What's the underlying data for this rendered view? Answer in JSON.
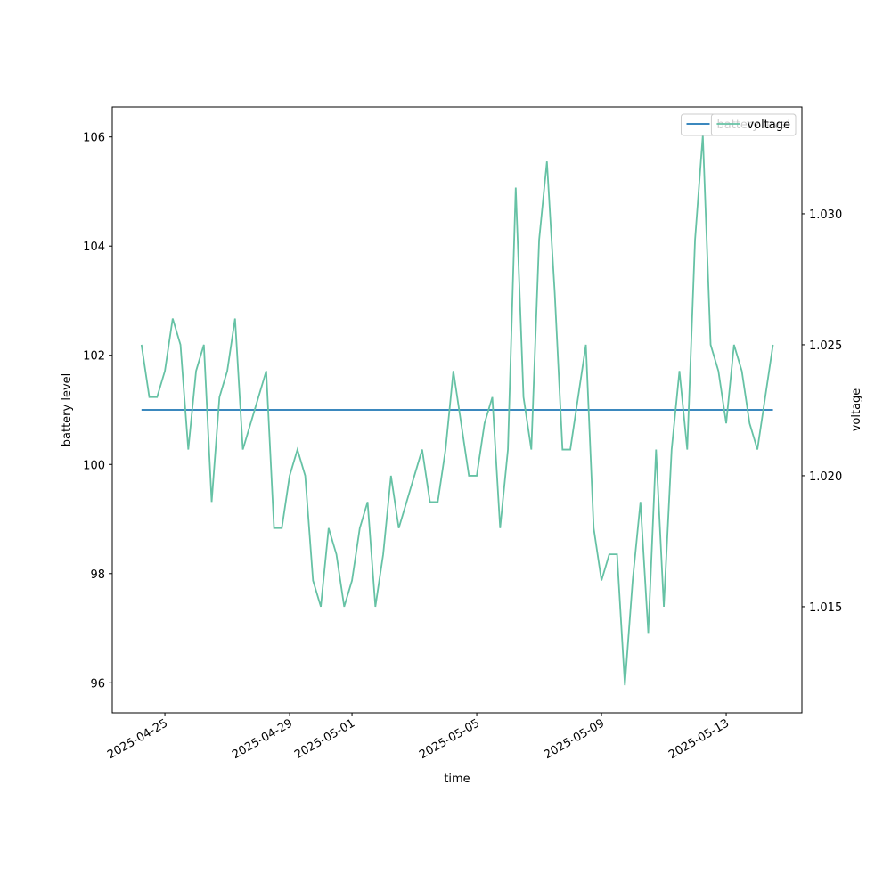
{
  "chart_data": {
    "type": "line",
    "xlabel": "time",
    "ylabel": "battery level",
    "y2label": "voltage",
    "x": [
      "2025-04-24T06:00",
      "2025-04-24T12:00",
      "2025-04-24T18:00",
      "2025-04-25T00:00",
      "2025-04-25T06:00",
      "2025-04-25T12:00",
      "2025-04-25T18:00",
      "2025-04-26T00:00",
      "2025-04-26T06:00",
      "2025-04-26T12:00",
      "2025-04-26T18:00",
      "2025-04-27T00:00",
      "2025-04-27T06:00",
      "2025-04-27T12:00",
      "2025-04-27T18:00",
      "2025-04-28T00:00",
      "2025-04-28T06:00",
      "2025-04-28T12:00",
      "2025-04-28T18:00",
      "2025-04-29T00:00",
      "2025-04-29T06:00",
      "2025-04-29T12:00",
      "2025-04-29T18:00",
      "2025-04-30T00:00",
      "2025-04-30T06:00",
      "2025-04-30T12:00",
      "2025-04-30T18:00",
      "2025-05-01T00:00",
      "2025-05-01T06:00",
      "2025-05-01T12:00",
      "2025-05-01T18:00",
      "2025-05-02T00:00",
      "2025-05-02T06:00",
      "2025-05-02T12:00",
      "2025-05-02T18:00",
      "2025-05-03T00:00",
      "2025-05-03T06:00",
      "2025-05-03T12:00",
      "2025-05-03T18:00",
      "2025-05-04T00:00",
      "2025-05-04T06:00",
      "2025-05-04T12:00",
      "2025-05-04T18:00",
      "2025-05-05T00:00",
      "2025-05-05T06:00",
      "2025-05-05T12:00",
      "2025-05-05T18:00",
      "2025-05-06T00:00",
      "2025-05-06T06:00",
      "2025-05-06T12:00",
      "2025-05-06T18:00",
      "2025-05-07T00:00",
      "2025-05-07T06:00",
      "2025-05-07T12:00",
      "2025-05-07T18:00",
      "2025-05-08T00:00",
      "2025-05-08T06:00",
      "2025-05-08T12:00",
      "2025-05-08T18:00",
      "2025-05-09T00:00",
      "2025-05-09T06:00",
      "2025-05-09T12:00",
      "2025-05-09T18:00",
      "2025-05-10T00:00",
      "2025-05-10T06:00",
      "2025-05-10T12:00",
      "2025-05-10T18:00",
      "2025-05-11T00:00",
      "2025-05-11T06:00",
      "2025-05-11T12:00",
      "2025-05-11T18:00",
      "2025-05-12T00:00",
      "2025-05-12T06:00",
      "2025-05-12T12:00",
      "2025-05-12T18:00",
      "2025-05-13T00:00",
      "2025-05-13T06:00",
      "2025-05-13T12:00",
      "2025-05-13T18:00",
      "2025-05-14T00:00",
      "2025-05-14T06:00",
      "2025-05-14T12:00"
    ],
    "series": [
      {
        "name": "battery level",
        "color": "#1f77b4",
        "axis": "y",
        "values": [
          101,
          101,
          101,
          101,
          101,
          101,
          101,
          101,
          101,
          101,
          101,
          101,
          101,
          101,
          101,
          101,
          101,
          101,
          101,
          101,
          101,
          101,
          101,
          101,
          101,
          101,
          101,
          101,
          101,
          101,
          101,
          101,
          101,
          101,
          101,
          101,
          101,
          101,
          101,
          101,
          101,
          101,
          101,
          101,
          101,
          101,
          101,
          101,
          101,
          101,
          101,
          101,
          101,
          101,
          101,
          101,
          101,
          101,
          101,
          101,
          101,
          101,
          101,
          101,
          101,
          101,
          101,
          101,
          101,
          101,
          101,
          101,
          101,
          101,
          101,
          101,
          101,
          101,
          101,
          101,
          101,
          101
        ]
      },
      {
        "name": "voltage",
        "color": "#66c2a5",
        "axis": "y2",
        "values": [
          1.025,
          1.023,
          1.023,
          1.024,
          1.026,
          1.025,
          1.021,
          1.024,
          1.025,
          1.019,
          1.023,
          1.024,
          1.026,
          1.021,
          1.022,
          1.023,
          1.024,
          1.018,
          1.018,
          1.02,
          1.021,
          1.02,
          1.016,
          1.015,
          1.018,
          1.017,
          1.015,
          1.016,
          1.018,
          1.019,
          1.015,
          1.017,
          1.02,
          1.018,
          1.019,
          1.02,
          1.021,
          1.019,
          1.019,
          1.021,
          1.024,
          1.022,
          1.02,
          1.02,
          1.022,
          1.023,
          1.018,
          1.021,
          1.031,
          1.023,
          1.021,
          1.029,
          1.032,
          1.027,
          1.021,
          1.021,
          1.023,
          1.025,
          1.018,
          1.016,
          1.017,
          1.017,
          1.012,
          1.016,
          1.019,
          1.014,
          1.021,
          1.015,
          1.021,
          1.024,
          1.021,
          1.029,
          1.033,
          1.025,
          1.024,
          1.022,
          1.025,
          1.024,
          1.022,
          1.021,
          1.023,
          1.025
        ]
      }
    ],
    "xlim": [
      "2025-04-23T07:30",
      "2025-05-15T10:15"
    ],
    "xticks": [
      "2025-04-25",
      "2025-04-29",
      "2025-05-01",
      "2025-05-05",
      "2025-05-09",
      "2025-05-13"
    ],
    "ylim": [
      95.45,
      106.55
    ],
    "yticks": [
      96,
      98,
      100,
      102,
      104,
      106
    ],
    "y2lim": [
      1.01095,
      1.03408
    ],
    "y2ticks": [
      1.015,
      {
        "value": 1.02,
        "label": "1.020"
      },
      1.025,
      {
        "value": 1.03,
        "label": "1.030"
      }
    ],
    "legend": "upper right"
  }
}
